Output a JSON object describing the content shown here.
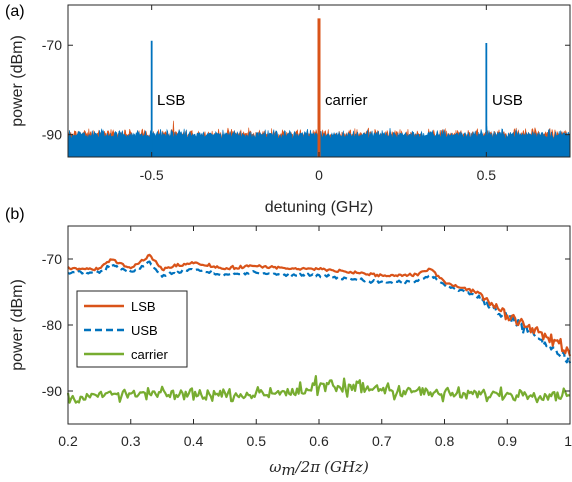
{
  "chart_data": [
    {
      "panel_label": "(a)",
      "type": "line",
      "xlabel": "detuning (GHz)",
      "ylabel": "power (dBm)",
      "xlim": [
        -0.75,
        0.75
      ],
      "ylim": [
        -95,
        -61
      ],
      "xticks": [
        -0.5,
        0,
        0.5
      ],
      "xtick_labels": [
        "-0.5",
        "0",
        "0.5"
      ],
      "yticks": [
        -90,
        -70
      ],
      "ytick_labels": [
        "-90",
        "-70"
      ],
      "grid": false,
      "colors": {
        "orange": "#D95319",
        "blue": "#0072BD"
      },
      "noise_floor_dBm": -90,
      "peaks": [
        {
          "label": "LSB",
          "x": -0.5,
          "y": -69,
          "color": "#0072BD"
        },
        {
          "label": "carrier",
          "x": 0,
          "y": -64,
          "color": "#D95319"
        },
        {
          "label": "USB",
          "x": 0.5,
          "y": -69.5,
          "color": "#0072BD"
        }
      ]
    },
    {
      "panel_label": "(b)",
      "type": "line",
      "xlabel": "ω_m/2π (GHz)",
      "xlabel_parts": {
        "sym": "ω",
        "sub": "m",
        "rest": "/2π",
        "unit": "(GHz)"
      },
      "ylabel": "power (dBm)",
      "xlim": [
        0.2,
        1.0
      ],
      "ylim": [
        -95,
        -65
      ],
      "xticks": [
        0.2,
        0.3,
        0.4,
        0.5,
        0.6,
        0.7,
        0.8,
        0.9,
        1.0
      ],
      "xtick_labels": [
        "0.2",
        "0.3",
        "0.4",
        "0.5",
        "0.6",
        "0.7",
        "0.8",
        "0.9",
        "1"
      ],
      "yticks": [
        -90,
        -80,
        -70
      ],
      "ytick_labels": [
        "-90",
        "-80",
        "-70"
      ],
      "grid": false,
      "legend": "left",
      "series": [
        {
          "name": "LSB",
          "color": "#D95319",
          "style": "solid",
          "x": [
            0.2,
            0.25,
            0.27,
            0.3,
            0.33,
            0.35,
            0.4,
            0.45,
            0.5,
            0.55,
            0.6,
            0.65,
            0.7,
            0.75,
            0.78,
            0.8,
            0.85,
            0.88,
            0.9,
            0.93,
            0.95,
            0.97,
            1.0
          ],
          "values": [
            -71.5,
            -71.5,
            -70.0,
            -71.5,
            -69.5,
            -71.5,
            -70.5,
            -71.5,
            -71.0,
            -71.5,
            -71.5,
            -72.0,
            -72.5,
            -72.5,
            -71.5,
            -73.5,
            -75.0,
            -77.0,
            -78.5,
            -80.0,
            -81.0,
            -82.0,
            -84.0
          ]
        },
        {
          "name": "USB",
          "color": "#0072BD",
          "style": "dashed",
          "x": [
            0.2,
            0.25,
            0.27,
            0.3,
            0.33,
            0.35,
            0.4,
            0.45,
            0.5,
            0.55,
            0.6,
            0.65,
            0.7,
            0.75,
            0.78,
            0.8,
            0.85,
            0.88,
            0.9,
            0.93,
            0.95,
            0.97,
            1.0
          ],
          "values": [
            -72.0,
            -72.0,
            -71.0,
            -72.0,
            -70.5,
            -72.5,
            -71.5,
            -72.5,
            -72.0,
            -72.5,
            -72.5,
            -73.0,
            -73.5,
            -73.5,
            -72.5,
            -74.0,
            -75.5,
            -78.0,
            -79.0,
            -80.5,
            -82.0,
            -83.5,
            -85.5
          ]
        },
        {
          "name": "carrier",
          "color": "#77AC30",
          "style": "solid",
          "x": [
            0.2,
            0.3,
            0.4,
            0.5,
            0.55,
            0.6,
            0.65,
            0.7,
            0.75,
            0.8,
            0.9,
            1.0
          ],
          "values": [
            -91,
            -90.5,
            -90.5,
            -90.5,
            -90,
            -89.5,
            -89.5,
            -89.5,
            -90,
            -90.5,
            -90.5,
            -90.5
          ]
        }
      ]
    }
  ]
}
